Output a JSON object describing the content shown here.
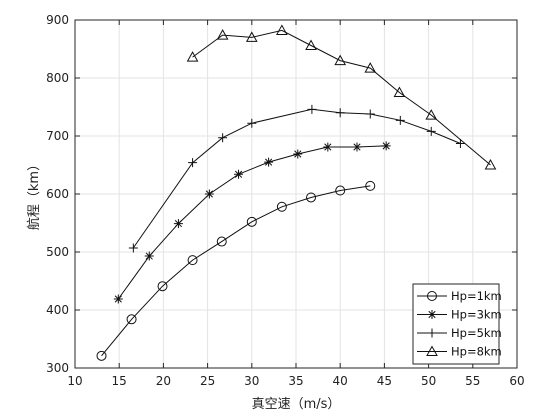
{
  "chart_data": {
    "type": "line",
    "xlabel": "真空速（m/s）",
    "ylabel": "航程（km）",
    "xlim": [
      10,
      60
    ],
    "ylim": [
      300,
      900
    ],
    "xticks": [
      10,
      15,
      20,
      25,
      30,
      35,
      40,
      45,
      50,
      55,
      60
    ],
    "yticks": [
      300,
      400,
      500,
      600,
      700,
      800,
      900
    ],
    "grid": true,
    "legend_position": "bottom-right",
    "series": [
      {
        "name": "Hp=1km",
        "marker": "circle",
        "x": [
          13.0,
          16.4,
          19.9,
          23.3,
          26.6,
          30.0,
          33.4,
          36.7,
          40.0,
          43.4
        ],
        "y": [
          321,
          384,
          441,
          486,
          518,
          552,
          578,
          594,
          606,
          614
        ]
      },
      {
        "name": "Hp=3km",
        "marker": "asterisk",
        "x": [
          14.9,
          18.4,
          21.7,
          25.2,
          28.5,
          31.9,
          35.2,
          38.6,
          41.9,
          45.2
        ],
        "y": [
          419,
          493,
          549,
          600,
          634,
          655,
          669,
          681,
          681,
          683
        ]
      },
      {
        "name": "Hp=5km",
        "marker": "plus",
        "x": [
          16.6,
          23.3,
          26.7,
          30.0,
          36.8,
          40.0,
          43.4,
          46.8,
          50.3,
          53.6
        ],
        "y": [
          507,
          654,
          697,
          722,
          746,
          740,
          738,
          727,
          708,
          687
        ]
      },
      {
        "name": "Hp=8km",
        "marker": "triangle",
        "x": [
          23.3,
          26.7,
          30.0,
          33.4,
          36.7,
          40.0,
          43.4,
          46.7,
          50.3,
          57.0
        ],
        "y": [
          836,
          874,
          870,
          882,
          856,
          830,
          817,
          775,
          736,
          650
        ]
      }
    ]
  }
}
